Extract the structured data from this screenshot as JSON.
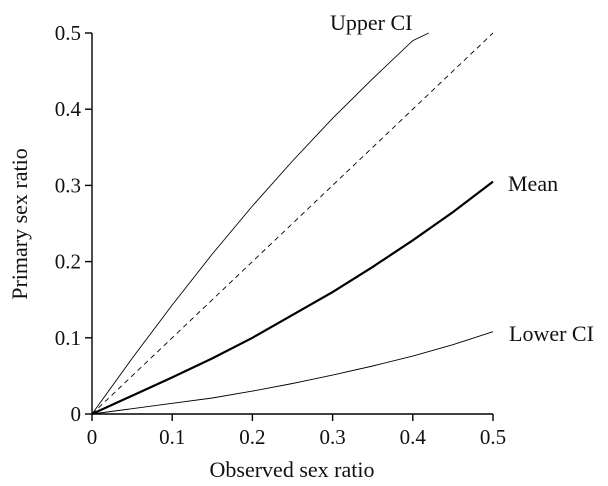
{
  "chart_data": {
    "type": "line",
    "title": "",
    "xlabel": "Observed sex ratio",
    "ylabel": "Primary sex ratio",
    "xlim": [
      0,
      0.5
    ],
    "ylim": [
      0,
      0.5
    ],
    "xticks": [
      "0",
      "0.1",
      "0.2",
      "0.3",
      "0.4",
      "0.5"
    ],
    "yticks": [
      "0",
      "0.1",
      "0.2",
      "0.3",
      "0.4",
      "0.5"
    ],
    "grid": false,
    "legend": "none",
    "series": [
      {
        "name": "Upper CI",
        "style": "thin solid",
        "x": [
          0,
          0.05,
          0.1,
          0.15,
          0.2,
          0.25,
          0.3,
          0.35,
          0.4,
          0.42
        ],
        "y": [
          0,
          0.073,
          0.143,
          0.21,
          0.273,
          0.332,
          0.388,
          0.44,
          0.49,
          0.5
        ]
      },
      {
        "name": "",
        "style": "dashed",
        "x": [
          0,
          0.5
        ],
        "y": [
          0,
          0.5
        ]
      },
      {
        "name": "Mean",
        "style": "thick solid",
        "x": [
          0,
          0.05,
          0.1,
          0.15,
          0.2,
          0.25,
          0.3,
          0.35,
          0.4,
          0.45,
          0.5
        ],
        "y": [
          0,
          0.024,
          0.048,
          0.073,
          0.1,
          0.13,
          0.16,
          0.193,
          0.228,
          0.265,
          0.305
        ]
      },
      {
        "name": "Lower CI",
        "style": "thin solid",
        "x": [
          0,
          0.05,
          0.1,
          0.15,
          0.2,
          0.25,
          0.3,
          0.35,
          0.4,
          0.45,
          0.5
        ],
        "y": [
          0,
          0.007,
          0.014,
          0.021,
          0.03,
          0.04,
          0.051,
          0.063,
          0.076,
          0.091,
          0.108
        ]
      }
    ],
    "annotations": [
      "Upper CI",
      "Mean",
      "Lower CI"
    ]
  }
}
